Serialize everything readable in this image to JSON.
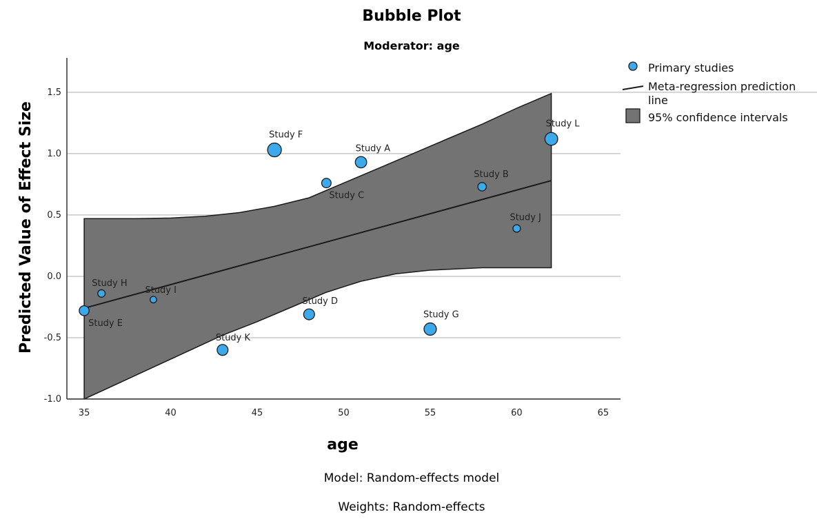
{
  "chart_data": {
    "type": "scatter",
    "title": "Bubble Plot",
    "subtitle": "Moderator: age",
    "xlabel": "age",
    "ylabel": "Predicted Value of Effect Size",
    "xlim": [
      34,
      66
    ],
    "ylim": [
      -1.0,
      1.78
    ],
    "x_ticks": [
      "35",
      "40",
      "45",
      "50",
      "55",
      "60",
      "65"
    ],
    "y_ticks": [
      "1.5",
      "1.0",
      "0.5",
      "0.0",
      "-0.5",
      "-1.0"
    ],
    "gridlines": "horizontal",
    "footnotes": [
      "Model: Random-effects model",
      "Weights: Random-effects"
    ],
    "legend": {
      "position": "top-right",
      "items": [
        {
          "label": "Primary studies",
          "kind": "marker"
        },
        {
          "label": "Meta-regression prediction",
          "label_cont": "line",
          "kind": "line"
        },
        {
          "label": "95% confidence intervals",
          "kind": "area"
        }
      ]
    },
    "points": [
      {
        "label": "Study A",
        "x": 51,
        "y": 0.93,
        "weight": 0.75
      },
      {
        "label": "Study B",
        "x": 58,
        "y": 0.73,
        "weight": 0.45
      },
      {
        "label": "Study C",
        "x": 49,
        "y": 0.76,
        "weight": 0.55
      },
      {
        "label": "Study D",
        "x": 48,
        "y": -0.31,
        "weight": 0.7
      },
      {
        "label": "Study E",
        "x": 35,
        "y": -0.28,
        "weight": 0.6
      },
      {
        "label": "Study F",
        "x": 46,
        "y": 1.03,
        "weight": 1.0
      },
      {
        "label": "Study G",
        "x": 55,
        "y": -0.43,
        "weight": 0.85
      },
      {
        "label": "Study H",
        "x": 36,
        "y": -0.14,
        "weight": 0.35
      },
      {
        "label": "Study I",
        "x": 39,
        "y": -0.19,
        "weight": 0.25
      },
      {
        "label": "Study J",
        "x": 60,
        "y": 0.39,
        "weight": 0.35
      },
      {
        "label": "Study K",
        "x": 43,
        "y": -0.6,
        "weight": 0.7
      },
      {
        "label": "Study L",
        "x": 62,
        "y": 1.12,
        "weight": 0.9
      }
    ],
    "regression_line": {
      "x": [
        35,
        62
      ],
      "y": [
        -0.26,
        0.78
      ]
    },
    "ci_upper": [
      {
        "x": 35,
        "y": 0.47
      },
      {
        "x": 38,
        "y": 0.47
      },
      {
        "x": 40,
        "y": 0.475
      },
      {
        "x": 42,
        "y": 0.49
      },
      {
        "x": 44,
        "y": 0.52
      },
      {
        "x": 46,
        "y": 0.57
      },
      {
        "x": 48,
        "y": 0.64
      },
      {
        "x": 50,
        "y": 0.76
      },
      {
        "x": 52,
        "y": 0.88
      },
      {
        "x": 54,
        "y": 1.0
      },
      {
        "x": 56,
        "y": 1.12
      },
      {
        "x": 58,
        "y": 1.24
      },
      {
        "x": 60,
        "y": 1.37
      },
      {
        "x": 62,
        "y": 1.49
      }
    ],
    "ci_lower": [
      {
        "x": 35,
        "y": -1.0
      },
      {
        "x": 37,
        "y": -0.87
      },
      {
        "x": 39,
        "y": -0.74
      },
      {
        "x": 41,
        "y": -0.61
      },
      {
        "x": 43,
        "y": -0.48
      },
      {
        "x": 45,
        "y": -0.37
      },
      {
        "x": 47,
        "y": -0.25
      },
      {
        "x": 49,
        "y": -0.13
      },
      {
        "x": 51,
        "y": -0.04
      },
      {
        "x": 53,
        "y": 0.02
      },
      {
        "x": 55,
        "y": 0.05
      },
      {
        "x": 58,
        "y": 0.07
      },
      {
        "x": 60,
        "y": 0.07
      },
      {
        "x": 62,
        "y": 0.07
      }
    ],
    "colors": {
      "marker_fill": "#3ba9ea",
      "marker_stroke": "#1a1a1a",
      "ci_fill": "#737373",
      "ci_stroke": "#1a1a1a",
      "line": "#1a1a1a",
      "grid": "#c8c8c8",
      "axis": "#333333"
    }
  }
}
